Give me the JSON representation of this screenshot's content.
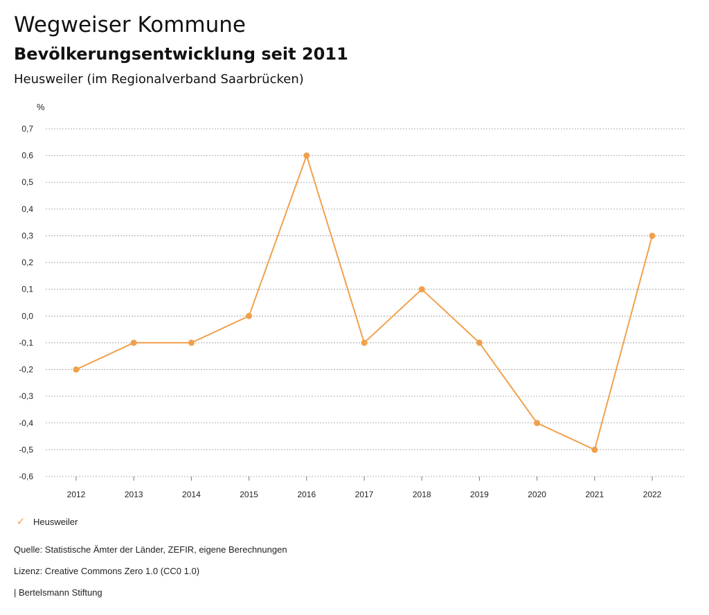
{
  "header": {
    "title": "Wegweiser Kommune",
    "subtitle": "Bevölkerungsentwicklung seit 2011",
    "region": "Heusweiler (im Regionalverband Saarbrücken)"
  },
  "chart_data": {
    "type": "line",
    "unit_label": "%",
    "categories": [
      "2012",
      "2013",
      "2014",
      "2015",
      "2016",
      "2017",
      "2018",
      "2019",
      "2020",
      "2021",
      "2022"
    ],
    "series": [
      {
        "name": "Heusweiler",
        "color": "#f0a04b",
        "values": [
          -0.2,
          -0.1,
          -0.1,
          0.0,
          0.6,
          -0.1,
          0.1,
          -0.1,
          -0.4,
          -0.5,
          0.3
        ]
      }
    ],
    "y_ticks": [
      "0,7",
      "0.6",
      "0,5",
      "0,4",
      "0,3",
      "0,2",
      "0,1",
      "0,0",
      "-0,1",
      "-0,2",
      "-0,3",
      "-0,4",
      "-0,5",
      "-0,6"
    ],
    "y_tick_values": [
      0.7,
      0.6,
      0.5,
      0.4,
      0.3,
      0.2,
      0.1,
      0.0,
      -0.1,
      -0.2,
      -0.3,
      -0.4,
      -0.5,
      -0.6
    ],
    "ylim": [
      -0.6,
      0.7
    ],
    "grid": true,
    "legend_position": "bottom-left"
  },
  "legend": {
    "label": "Heusweiler"
  },
  "footer": {
    "source": "Quelle: Statistische Ämter der Länder, ZEFIR, eigene Berechnungen",
    "license": "Lizenz: Creative Commons Zero 1.0 (CC0 1.0)",
    "publisher": "| Bertelsmann Stiftung"
  }
}
